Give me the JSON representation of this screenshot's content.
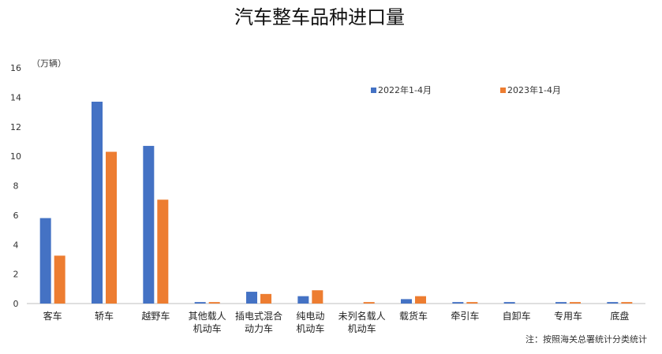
{
  "chart_data": {
    "type": "bar",
    "title": "汽车整车品种进口量",
    "unit_label": "（万辆）",
    "ylim": [
      0,
      16
    ],
    "yticks": [
      0,
      2,
      4,
      6,
      8,
      10,
      12,
      14,
      16
    ],
    "categories": [
      [
        "客车"
      ],
      [
        "轿车"
      ],
      [
        "越野车"
      ],
      [
        "其他载人",
        "机动车"
      ],
      [
        "插电式混合",
        "动力车"
      ],
      [
        "纯电动",
        "机动车"
      ],
      [
        "未列名载人",
        "机动车"
      ],
      [
        "载货车"
      ],
      [
        "牵引车"
      ],
      [
        "自卸车"
      ],
      [
        "专用车"
      ],
      [
        "底盘"
      ]
    ],
    "series": [
      {
        "name": "2022年1-4月",
        "color": "#4472C4",
        "values": [
          5.8,
          13.7,
          10.7,
          0.1,
          0.8,
          0.5,
          0.0,
          0.3,
          0.1,
          0.1,
          0.1,
          0.1
        ]
      },
      {
        "name": "2023年1-4月",
        "color": "#ED7D31",
        "values": [
          3.25,
          10.3,
          7.05,
          0.1,
          0.65,
          0.9,
          0.1,
          0.5,
          0.1,
          0.0,
          0.1,
          0.1
        ]
      }
    ],
    "legend": "top-right",
    "grid": false,
    "note": "注：按照海关总署统计分类统计"
  }
}
